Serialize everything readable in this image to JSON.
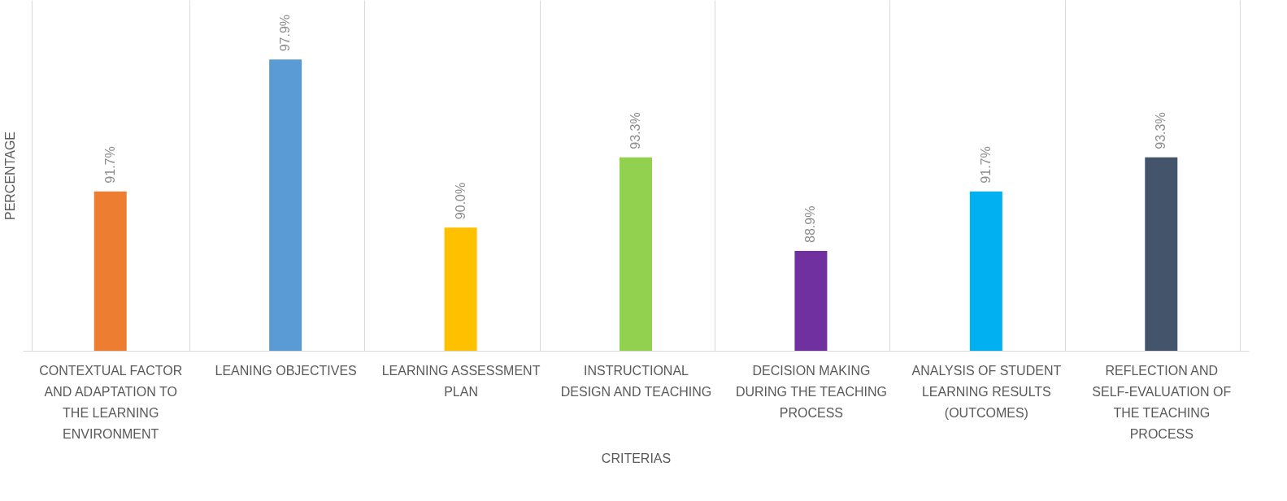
{
  "chart_data": {
    "type": "bar",
    "xlabel": "CRITERIAS",
    "ylabel": "PERCENTAGE",
    "categories": [
      "CONTEXTUAL FACTOR AND ADAPTATION TO THE LEARNING ENVIRONMENT",
      "LEANING OBJECTIVES",
      "LEARNING ASSESSMENT PLAN",
      "INSTRUCTIONAL DESIGN AND TEACHING",
      "DECISION MAKING DURING THE TEACHING PROCESS",
      "ANALYSIS OF STUDENT LEARNING RESULTS (OUTCOMES)",
      "REFLECTION AND SELF-EVALUATION OF THE TEACHING PROCESS"
    ],
    "values": [
      91.7,
      97.9,
      90.0,
      93.3,
      88.9,
      91.7,
      93.3
    ],
    "value_labels": [
      "91.7%",
      "97.9%",
      "90.0%",
      "93.3%",
      "88.9%",
      "91.7%",
      "93.3%"
    ],
    "colors": [
      "#ed7d31",
      "#5b9bd5",
      "#ffc000",
      "#92d050",
      "#7030a0",
      "#00b0f0",
      "#44546a"
    ],
    "ylim": [
      84.2,
      100.7
    ],
    "grid": "x",
    "tick_labels": "x",
    "legend": false
  }
}
